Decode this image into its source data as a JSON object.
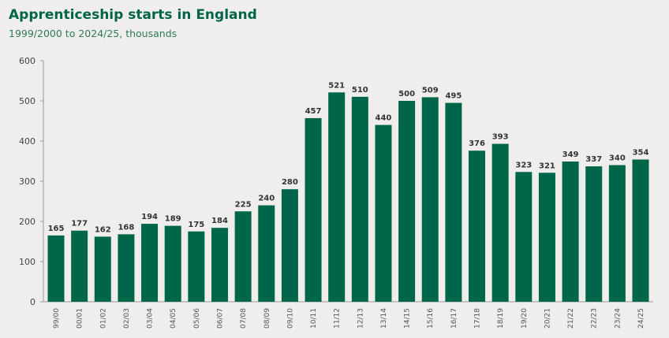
{
  "chart_data": {
    "type": "bar",
    "title": "Apprenticeship starts in England",
    "subtitle": "1999/2000 to 2024/25, thousands",
    "xlabel": "",
    "ylabel": "",
    "ylim": [
      0,
      600
    ],
    "yticks": [
      0,
      100,
      200,
      300,
      400,
      500,
      600
    ],
    "categories": [
      "99/00",
      "00/01",
      "01/02",
      "02/03",
      "03/04",
      "04/05",
      "05/06",
      "06/07",
      "07/08",
      "08/09",
      "09/10",
      "10/11",
      "11/12",
      "12/13",
      "13/14",
      "14/15",
      "15/16",
      "16/17",
      "17/18",
      "18/19",
      "19/20",
      "20/21",
      "21/22",
      "22/23",
      "23/24",
      "24/25"
    ],
    "values": [
      165,
      177,
      162,
      168,
      194,
      189,
      175,
      184,
      225,
      240,
      280,
      457,
      521,
      510,
      440,
      500,
      509,
      495,
      376,
      393,
      323,
      321,
      349,
      337,
      340,
      354
    ],
    "grid": false,
    "bar_color": "#00664a"
  }
}
